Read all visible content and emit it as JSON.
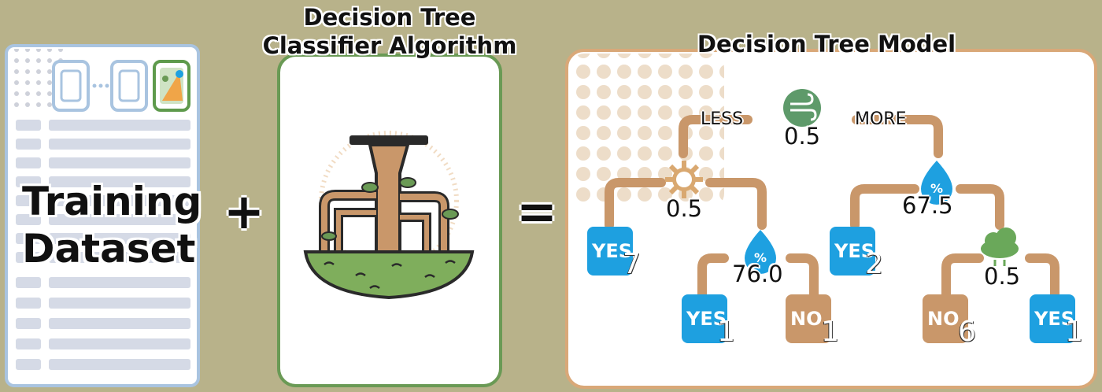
{
  "panels": {
    "training": {
      "title": "Training Dataset"
    },
    "algorithm": {
      "title_line1": "Decision Tree",
      "title_line2": "Classifier Algorithm"
    },
    "model": {
      "title": "Decision Tree Model"
    }
  },
  "operators": {
    "plus": "+",
    "equals": "="
  },
  "tree": {
    "root": {
      "icon": "wind-icon",
      "threshold": "0.5",
      "left_label": "LESS",
      "right_label": "MORE"
    },
    "left_node": {
      "icon": "sun-icon",
      "threshold": "0.5"
    },
    "right_node": {
      "icon": "humidity-drop-icon",
      "threshold": "67.5"
    },
    "left_sub_node": {
      "icon": "humidity-drop-icon",
      "threshold": "76.0"
    },
    "right_sub_node": {
      "icon": "cloud-rain-icon",
      "threshold": "0.5"
    },
    "leaves": [
      {
        "label": "YES",
        "count": "7"
      },
      {
        "label": "YES",
        "count": "1"
      },
      {
        "label": "NO",
        "count": "1"
      },
      {
        "label": "YES",
        "count": "2"
      },
      {
        "label": "NO",
        "count": "6"
      },
      {
        "label": "YES",
        "count": "1"
      }
    ]
  },
  "colors": {
    "background": "#b8b28a",
    "yes_leaf": "#1ea0e0",
    "no_leaf": "#c9976a",
    "branch": "#c9976a",
    "dataset_border": "#a9c4e0",
    "algorithm_border": "#6a9a55",
    "model_border": "#d9a878"
  }
}
